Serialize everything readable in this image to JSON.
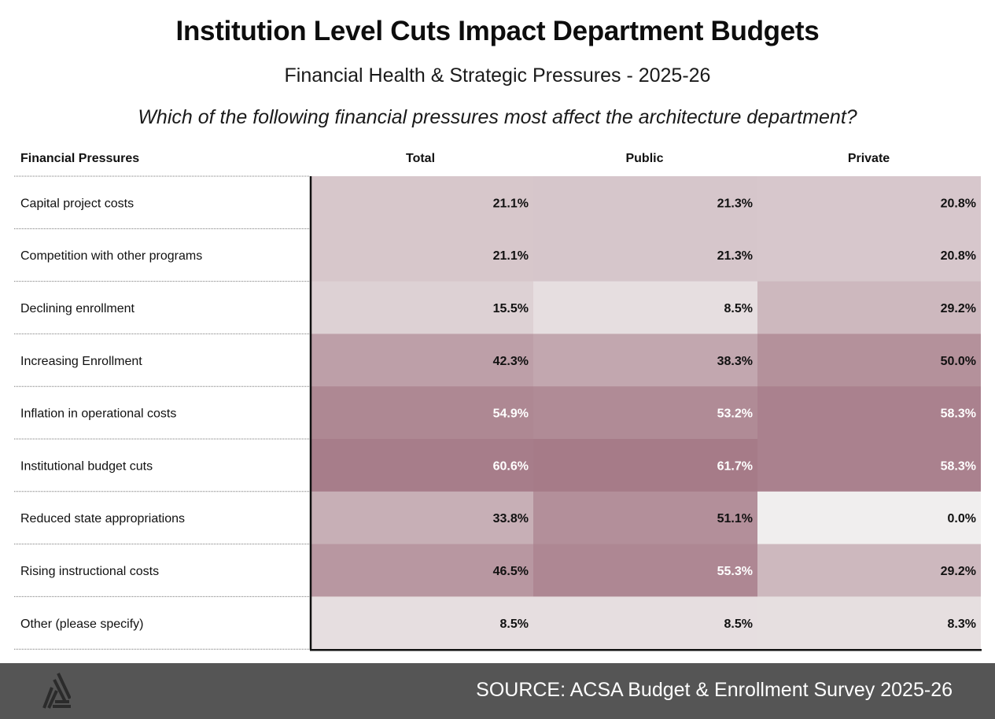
{
  "title": "Institution Level Cuts Impact Department Budgets",
  "subtitle": "Financial Health & Strategic Pressures - 2025-26",
  "question": "Which of the following financial pressures most affect the architecture department?",
  "footer": {
    "source": "SOURCE: ACSA Budget & Enrollment Survey 2025-26",
    "logo_icon": "acsa-triangle-logo-icon"
  },
  "colors": {
    "low": "#f0eeee",
    "high": "#a67b88",
    "dark_text": "#111111",
    "light_text": "#ffffff",
    "footer_bg": "#555555"
  },
  "chart_data": {
    "type": "heatmap",
    "title": "Institution Level Cuts Impact Department Budgets",
    "subtitle": "Financial Health & Strategic Pressures - 2025-26",
    "row_header": "Financial Pressures",
    "columns": [
      "Total",
      "Public",
      "Private"
    ],
    "rows": [
      "Capital project costs",
      "Competition with other programs",
      "Declining enrollment",
      "Increasing Enrollment",
      "Inflation in operational costs",
      "Institutional budget cuts",
      "Reduced state appropriations",
      "Rising instructional costs",
      "Other (please specify)"
    ],
    "values": [
      [
        21.1,
        21.3,
        20.8
      ],
      [
        21.1,
        21.3,
        20.8
      ],
      [
        15.5,
        8.5,
        29.2
      ],
      [
        42.3,
        38.3,
        50.0
      ],
      [
        54.9,
        53.2,
        58.3
      ],
      [
        60.6,
        61.7,
        58.3
      ],
      [
        33.8,
        51.1,
        0.0
      ],
      [
        46.5,
        55.3,
        29.2
      ],
      [
        8.5,
        8.5,
        8.3
      ]
    ],
    "labels": [
      [
        "21.1%",
        "21.3%",
        "20.8%"
      ],
      [
        "21.1%",
        "21.3%",
        "20.8%"
      ],
      [
        "15.5%",
        "8.5%",
        "29.2%"
      ],
      [
        "42.3%",
        "38.3%",
        "50.0%"
      ],
      [
        "54.9%",
        "53.2%",
        "58.3%"
      ],
      [
        "60.6%",
        "61.7%",
        "58.3%"
      ],
      [
        "33.8%",
        "51.1%",
        "0.0%"
      ],
      [
        "46.5%",
        "55.3%",
        "29.2%"
      ],
      [
        "8.5%",
        "8.5%",
        "8.3%"
      ]
    ],
    "value_unit": "%",
    "color_range": [
      0,
      61.7
    ],
    "light_text_threshold": 52
  }
}
